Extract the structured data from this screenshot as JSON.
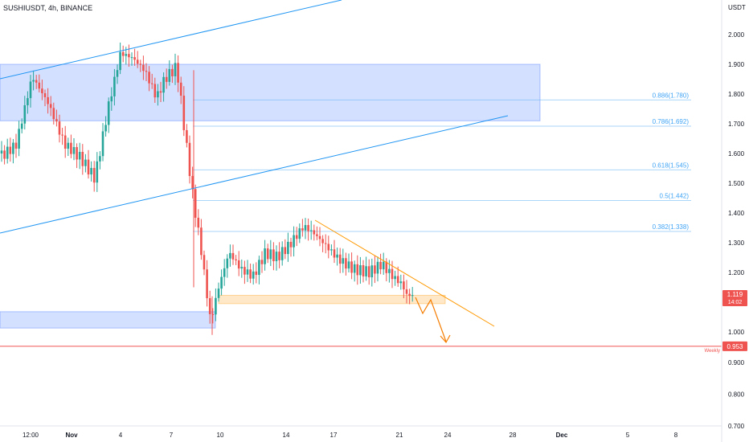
{
  "header": {
    "symbol": "SUSHIUSDT",
    "interval": "4h",
    "exchange": "BINANCE"
  },
  "price_axis": {
    "unit": "USDT"
  },
  "chart_data": {
    "type": "candlestick",
    "title": "SUSHIUSDT, 4h, BINANCE",
    "y_unit": "USDT",
    "ylim": [
      0.68,
      2.09
    ],
    "grid": false,
    "x_tick_labels": [
      "12:00",
      "Nov",
      "4",
      "7",
      "10",
      "14",
      "17",
      "21",
      "24",
      "28",
      "Dec",
      "5",
      "8"
    ],
    "y_tick_labels": [
      "2.000",
      "1.900",
      "1.800",
      "1.700",
      "1.600",
      "1.500",
      "1.400",
      "1.300",
      "1.200",
      "1.000",
      "0.900",
      "0.800",
      "0.700"
    ],
    "last_price": {
      "value": "1.119",
      "countdown": "14:02",
      "color": "#ef5350"
    },
    "fib_levels": [
      {
        "label": "0.886(1.780)",
        "value": 1.78
      },
      {
        "label": "0.786(1.692)",
        "value": 1.692
      },
      {
        "label": "0.618(1.545)",
        "value": 1.545
      },
      {
        "label": "0.5(1.442)",
        "value": 1.442
      },
      {
        "label": "0.382(1.338)",
        "value": 1.338
      }
    ],
    "weekly_level": {
      "label": "Weekly",
      "value_label": "0.953",
      "value": 0.953,
      "color": "#ef5350"
    },
    "zones": [
      {
        "name": "upper-resistance-zone",
        "y_from": 1.71,
        "y_to": 1.9,
        "x_end_date": "Nov 30",
        "color": "#2962ff"
      },
      {
        "name": "lower-support-zone",
        "y_from": 1.013,
        "y_to": 1.068,
        "x_end_date": "Nov 10",
        "color": "#2962ff"
      },
      {
        "name": "support-box",
        "y_from": 1.095,
        "y_to": 1.123,
        "x_end_date": "Nov 24",
        "color": "#ff9800"
      }
    ],
    "colors": {
      "up": "#26a69a",
      "down": "#ef5350",
      "trendline": "#2196f3",
      "triangle": "#ff9800",
      "projection": "#f57c00"
    }
  }
}
